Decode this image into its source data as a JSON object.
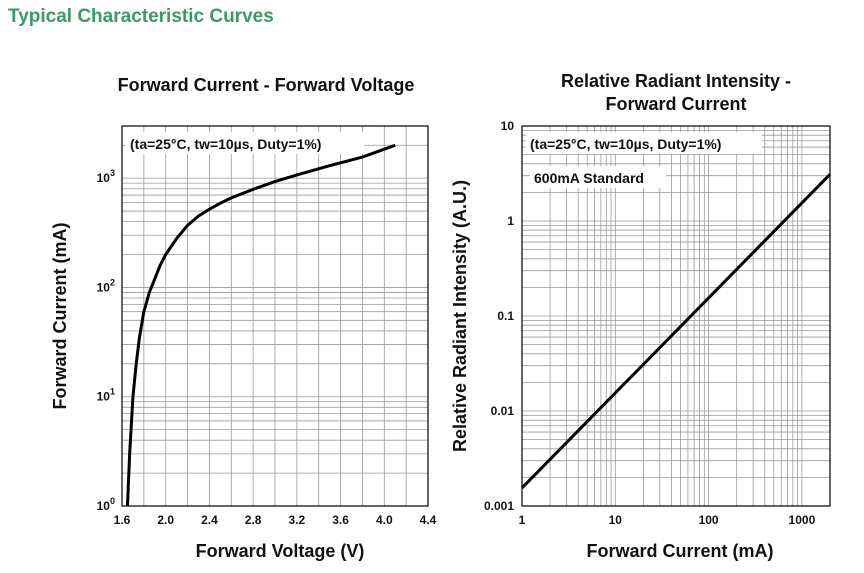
{
  "page": {
    "heading": "Typical Characteristic Curves",
    "colors": {
      "heading": "#3a9a6a",
      "curve": "#000000",
      "grid": "#9a9a9a"
    }
  },
  "chart_data": [
    {
      "type": "line",
      "title": "Forward Current - Forward Voltage",
      "annotation": "(ta=25°C, tw=10µs, Duty=1%)",
      "xlabel": "Forward Voltage (V)",
      "ylabel": "Forward Current (mA)",
      "xscale": "linear",
      "yscale": "log",
      "xlim": [
        1.6,
        4.4
      ],
      "ylim": [
        1,
        3000
      ],
      "grid": true,
      "xticks": [
        "1.6",
        "2.0",
        "2.4",
        "2.8",
        "3.2",
        "3.6",
        "4.0",
        "4.4"
      ],
      "yticks": [
        {
          "base": "10",
          "exp": "0"
        },
        {
          "base": "10",
          "exp": "1"
        },
        {
          "base": "10",
          "exp": "2"
        },
        {
          "base": "10",
          "exp": "3"
        }
      ],
      "series": [
        {
          "x": [
            1.65,
            1.67,
            1.7,
            1.73,
            1.76,
            1.8,
            1.85,
            1.9,
            1.95,
            2.0,
            2.1,
            2.2,
            2.3,
            2.4,
            2.5,
            2.6,
            2.8,
            3.0,
            3.2,
            3.5,
            3.8,
            4.1
          ],
          "y": [
            1,
            3,
            10,
            20,
            35,
            60,
            90,
            120,
            160,
            200,
            280,
            370,
            450,
            520,
            590,
            660,
            790,
            930,
            1070,
            1300,
            1560,
            2000
          ]
        }
      ]
    },
    {
      "type": "line",
      "title": [
        "Relative Radiant Intensity -",
        "Forward Current"
      ],
      "annotation": "(ta=25°C, tw=10µs, Duty=1%)",
      "annotation2": "600mA Standard",
      "xlabel": "Forward Current (mA)",
      "ylabel": "Relative Radiant Intensity (A.U.)",
      "xscale": "log",
      "yscale": "log",
      "xlim": [
        1,
        2000
      ],
      "ylim": [
        0.001,
        10
      ],
      "grid": true,
      "xticks": [
        "1",
        "10",
        "100",
        "1000"
      ],
      "yticks": [
        "0.001",
        "0.01",
        "0.1",
        "1",
        "10"
      ],
      "series": [
        {
          "x": [
            1,
            10,
            100,
            1000,
            2000
          ],
          "y": [
            0.00155,
            0.0155,
            0.155,
            1.55,
            3.1
          ]
        }
      ]
    }
  ]
}
